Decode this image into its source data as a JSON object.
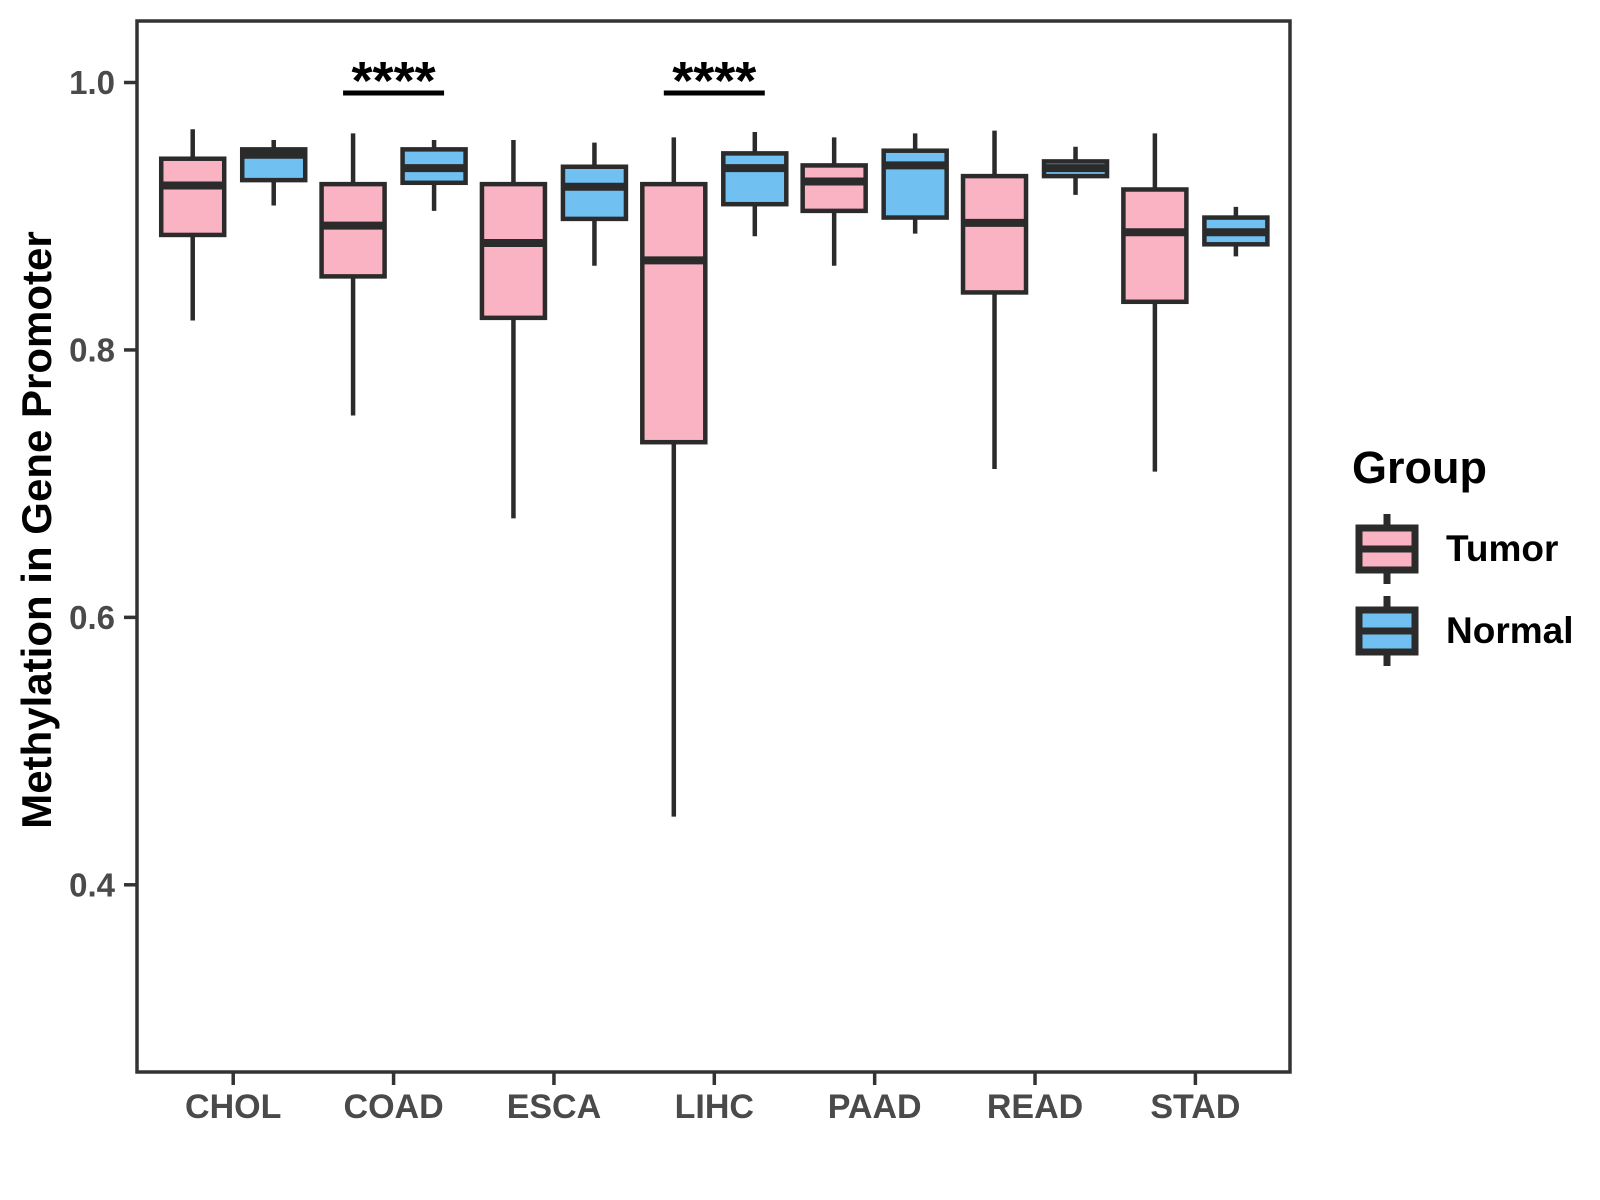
{
  "figure": {
    "background": "#ffffff",
    "axis_color": "#333333",
    "tick_label_color": "#4a4a4a",
    "box_border_color": "#2b2b2b",
    "median_color": "#2b2b2b",
    "significance_color": "#000000"
  },
  "legend": {
    "title": "Group",
    "items": [
      {
        "label": "Tumor",
        "color": "#F9B3C2"
      },
      {
        "label": "Normal",
        "color": "#70C1F2"
      }
    ]
  },
  "chart_data": {
    "type": "boxplot",
    "title": "",
    "xlabel": "",
    "ylabel": "Methylation in Gene Promoter",
    "categories": [
      "CHOL",
      "COAD",
      "ESCA",
      "LIHC",
      "PAAD",
      "READ",
      "STAD"
    ],
    "yticks": [
      0.4,
      0.6,
      0.8,
      1.0
    ],
    "ylim": [
      0.26,
      1.046
    ],
    "grid": false,
    "legend_position": "right",
    "legend_title": "Group",
    "groups": [
      {
        "name": "Tumor",
        "color": "#F9B3C2"
      },
      {
        "name": "Normal",
        "color": "#70C1F2"
      }
    ],
    "series": [
      {
        "name": "Tumor",
        "boxes": [
          {
            "category": "CHOL",
            "whisker_low": 0.822,
            "q1": 0.886,
            "median": 0.923,
            "q3": 0.943,
            "whisker_high": 0.965
          },
          {
            "category": "COAD",
            "whisker_low": 0.751,
            "q1": 0.855,
            "median": 0.893,
            "q3": 0.924,
            "whisker_high": 0.962
          },
          {
            "category": "ESCA",
            "whisker_low": 0.674,
            "q1": 0.824,
            "median": 0.88,
            "q3": 0.924,
            "whisker_high": 0.957
          },
          {
            "category": "LIHC",
            "whisker_low": 0.451,
            "q1": 0.731,
            "median": 0.867,
            "q3": 0.924,
            "whisker_high": 0.959
          },
          {
            "category": "PAAD",
            "whisker_low": 0.863,
            "q1": 0.904,
            "median": 0.926,
            "q3": 0.938,
            "whisker_high": 0.959
          },
          {
            "category": "READ",
            "whisker_low": 0.711,
            "q1": 0.843,
            "median": 0.895,
            "q3": 0.93,
            "whisker_high": 0.964
          },
          {
            "category": "STAD",
            "whisker_low": 0.709,
            "q1": 0.836,
            "median": 0.888,
            "q3": 0.92,
            "whisker_high": 0.962
          }
        ]
      },
      {
        "name": "Normal",
        "boxes": [
          {
            "category": "CHOL",
            "whisker_low": 0.908,
            "q1": 0.927,
            "median": 0.946,
            "q3": 0.95,
            "whisker_high": 0.957
          },
          {
            "category": "COAD",
            "whisker_low": 0.904,
            "q1": 0.925,
            "median": 0.936,
            "q3": 0.95,
            "whisker_high": 0.957
          },
          {
            "category": "ESCA",
            "whisker_low": 0.863,
            "q1": 0.898,
            "median": 0.922,
            "q3": 0.937,
            "whisker_high": 0.955
          },
          {
            "category": "LIHC",
            "whisker_low": 0.885,
            "q1": 0.909,
            "median": 0.936,
            "q3": 0.947,
            "whisker_high": 0.963
          },
          {
            "category": "PAAD",
            "whisker_low": 0.887,
            "q1": 0.899,
            "median": 0.938,
            "q3": 0.949,
            "whisker_high": 0.962
          },
          {
            "category": "READ",
            "whisker_low": 0.916,
            "q1": 0.93,
            "median": 0.936,
            "q3": 0.941,
            "whisker_high": 0.952
          },
          {
            "category": "STAD",
            "whisker_low": 0.87,
            "q1": 0.879,
            "median": 0.888,
            "q3": 0.899,
            "whisker_high": 0.907
          }
        ]
      }
    ],
    "annotations": [
      {
        "category": "COAD",
        "label": "****"
      },
      {
        "category": "LIHC",
        "label": "****"
      }
    ]
  }
}
